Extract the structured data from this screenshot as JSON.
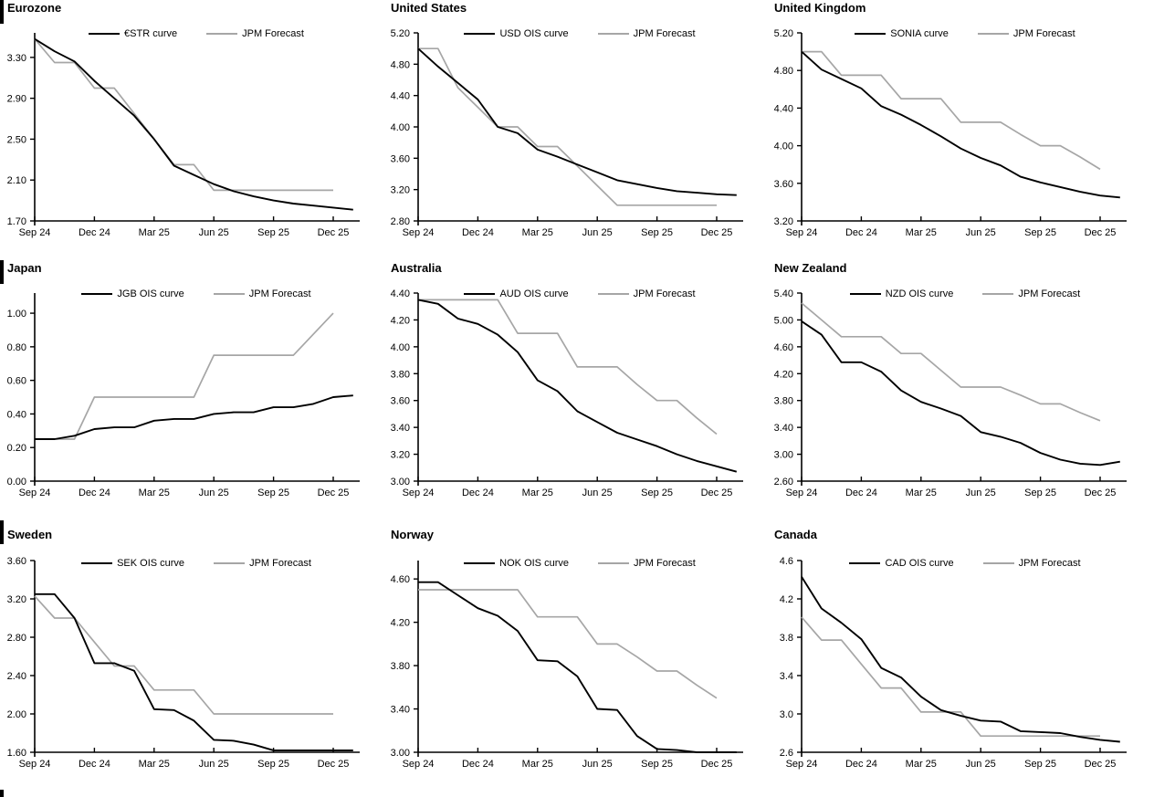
{
  "page": {
    "background": "#ffffff",
    "curve_black": "#000000",
    "forecast_gray": "#a6a6a6"
  },
  "chart_data": [
    {
      "type": "line",
      "title": "Eurozone",
      "section_bar": true,
      "x_tick_labels": [
        "Sep 24",
        "Dec 24",
        "Mar 25",
        "Jun 25",
        "Sep 25",
        "Dec 25"
      ],
      "x_tick_months": [
        0,
        3,
        6,
        9,
        12,
        15
      ],
      "ylim": [
        1.7,
        3.54
      ],
      "y_ticks": [
        1.7,
        2.1,
        2.5,
        2.9,
        3.3
      ],
      "y_decimals": 2,
      "grid": "off",
      "legend_position": "top-center",
      "series": [
        {
          "name": "€STR curve",
          "color": "#000000",
          "width": 1.9,
          "values": [
            3.48,
            3.36,
            3.26,
            3.07,
            2.9,
            2.73,
            2.5,
            2.24,
            2.15,
            2.06,
            1.99,
            1.94,
            1.9,
            1.87,
            1.85,
            1.83,
            1.81
          ]
        },
        {
          "name": "JPM Forecast",
          "color": "#a6a6a6",
          "width": 1.7,
          "values": [
            3.48,
            3.25,
            3.25,
            3.0,
            3.0,
            2.75,
            2.5,
            2.25,
            2.25,
            2.0,
            2.0,
            2.0,
            2.0,
            2.0,
            2.0,
            2.0
          ]
        }
      ]
    },
    {
      "type": "line",
      "title": "United States",
      "section_bar": false,
      "x_tick_labels": [
        "Sep 24",
        "Dec 24",
        "Mar 25",
        "Jun 25",
        "Sep 25",
        "Dec 25"
      ],
      "x_tick_months": [
        0,
        3,
        6,
        9,
        12,
        15
      ],
      "ylim": [
        2.8,
        5.2
      ],
      "y_ticks": [
        2.8,
        3.2,
        3.6,
        4.0,
        4.4,
        4.8,
        5.2
      ],
      "y_decimals": 2,
      "grid": "off",
      "legend_position": "top-center",
      "series": [
        {
          "name": "USD OIS curve",
          "color": "#000000",
          "width": 1.9,
          "values": [
            5.0,
            4.77,
            4.56,
            4.35,
            4.0,
            3.92,
            3.71,
            3.62,
            3.52,
            3.42,
            3.32,
            3.27,
            3.22,
            3.18,
            3.16,
            3.14,
            3.13
          ]
        },
        {
          "name": "JPM Forecast",
          "color": "#a6a6a6",
          "width": 1.7,
          "values": [
            5.0,
            5.0,
            4.5,
            4.25,
            4.0,
            4.0,
            3.75,
            3.75,
            3.5,
            3.25,
            3.0,
            3.0,
            3.0,
            3.0,
            3.0,
            3.0
          ]
        }
      ]
    },
    {
      "type": "line",
      "title": "United Kingdom",
      "section_bar": false,
      "x_tick_labels": [
        "Sep 24",
        "Dec 24",
        "Mar 25",
        "Jun 25",
        "Sep 25",
        "Dec 25"
      ],
      "x_tick_months": [
        0,
        3,
        6,
        9,
        12,
        15
      ],
      "ylim": [
        3.2,
        5.2
      ],
      "y_ticks": [
        3.2,
        3.6,
        4.0,
        4.4,
        4.8,
        5.2
      ],
      "y_decimals": 2,
      "grid": "off",
      "legend_position": "top-center",
      "series": [
        {
          "name": "SONIA curve",
          "color": "#000000",
          "width": 1.9,
          "values": [
            5.0,
            4.81,
            4.71,
            4.61,
            4.42,
            4.33,
            4.22,
            4.1,
            3.97,
            3.87,
            3.79,
            3.67,
            3.61,
            3.56,
            3.51,
            3.47,
            3.45
          ]
        },
        {
          "name": "JPM Forecast",
          "color": "#a6a6a6",
          "width": 1.7,
          "values": [
            5.0,
            5.0,
            4.75,
            4.75,
            4.75,
            4.5,
            4.5,
            4.5,
            4.25,
            4.25,
            4.25,
            4.12,
            4.0,
            4.0,
            3.88,
            3.75
          ]
        }
      ]
    },
    {
      "type": "line",
      "title": "Japan",
      "section_bar": true,
      "x_tick_labels": [
        "Sep 24",
        "Dec 24",
        "Mar 25",
        "Jun 25",
        "Sep 25",
        "Dec 25"
      ],
      "x_tick_months": [
        0,
        3,
        6,
        9,
        12,
        15
      ],
      "ylim": [
        0.0,
        1.12
      ],
      "y_ticks": [
        0.0,
        0.2,
        0.4,
        0.6,
        0.8,
        1.0
      ],
      "y_decimals": 2,
      "grid": "off",
      "legend_position": "top-center",
      "series": [
        {
          "name": "JGB OIS curve",
          "color": "#000000",
          "width": 1.9,
          "values": [
            0.25,
            0.25,
            0.27,
            0.31,
            0.32,
            0.32,
            0.36,
            0.37,
            0.37,
            0.4,
            0.41,
            0.41,
            0.44,
            0.44,
            0.46,
            0.5,
            0.51
          ]
        },
        {
          "name": "JPM Forecast",
          "color": "#a6a6a6",
          "width": 1.7,
          "values": [
            0.25,
            0.25,
            0.25,
            0.5,
            0.5,
            0.5,
            0.5,
            0.5,
            0.5,
            0.75,
            0.75,
            0.75,
            0.75,
            0.75,
            0.875,
            1.0
          ]
        }
      ]
    },
    {
      "type": "line",
      "title": "Australia",
      "section_bar": false,
      "x_tick_labels": [
        "Sep 24",
        "Dec 24",
        "Mar 25",
        "Jun 25",
        "Sep 25",
        "Dec 25"
      ],
      "x_tick_months": [
        0,
        3,
        6,
        9,
        12,
        15
      ],
      "ylim": [
        3.0,
        4.4
      ],
      "y_ticks": [
        3.0,
        3.2,
        3.4,
        3.6,
        3.8,
        4.0,
        4.2,
        4.4
      ],
      "y_decimals": 2,
      "grid": "off",
      "legend_position": "top-center",
      "series": [
        {
          "name": "AUD OIS curve",
          "color": "#000000",
          "width": 1.9,
          "values": [
            4.35,
            4.32,
            4.21,
            4.17,
            4.09,
            3.96,
            3.75,
            3.67,
            3.52,
            3.44,
            3.36,
            3.31,
            3.26,
            3.2,
            3.15,
            3.11,
            3.07
          ]
        },
        {
          "name": "JPM Forecast",
          "color": "#a6a6a6",
          "width": 1.7,
          "values": [
            4.35,
            4.35,
            4.35,
            4.35,
            4.35,
            4.1,
            4.1,
            4.1,
            3.85,
            3.85,
            3.85,
            3.72,
            3.6,
            3.6,
            3.47,
            3.35
          ]
        }
      ]
    },
    {
      "type": "line",
      "title": "New Zealand",
      "section_bar": false,
      "x_tick_labels": [
        "Sep 24",
        "Dec 24",
        "Mar 25",
        "Jun 25",
        "Sep 25",
        "Dec 25"
      ],
      "x_tick_months": [
        0,
        3,
        6,
        9,
        12,
        15
      ],
      "ylim": [
        2.6,
        5.4
      ],
      "y_ticks": [
        2.6,
        3.0,
        3.4,
        3.8,
        4.2,
        4.6,
        5.0,
        5.4
      ],
      "y_decimals": 2,
      "grid": "off",
      "legend_position": "top-center",
      "series": [
        {
          "name": "NZD OIS curve",
          "color": "#000000",
          "width": 1.9,
          "values": [
            4.98,
            4.78,
            4.37,
            4.37,
            4.23,
            3.95,
            3.78,
            3.68,
            3.57,
            3.33,
            3.26,
            3.17,
            3.02,
            2.92,
            2.86,
            2.84,
            2.89
          ]
        },
        {
          "name": "JPM Forecast",
          "color": "#a6a6a6",
          "width": 1.7,
          "values": [
            5.25,
            5.0,
            4.75,
            4.75,
            4.75,
            4.5,
            4.5,
            4.25,
            4.0,
            4.0,
            4.0,
            3.88,
            3.75,
            3.75,
            3.62,
            3.5
          ]
        }
      ]
    },
    {
      "type": "line",
      "title": "Sweden",
      "section_bar": true,
      "x_tick_labels": [
        "Sep 24",
        "Dec 24",
        "Mar 25",
        "Jun 25",
        "Sep 25",
        "Dec 25"
      ],
      "x_tick_months": [
        0,
        3,
        6,
        9,
        12,
        15
      ],
      "ylim": [
        1.6,
        3.6
      ],
      "y_ticks": [
        1.6,
        2.0,
        2.4,
        2.8,
        3.2,
        3.6
      ],
      "y_decimals": 2,
      "grid": "off",
      "legend_position": "top-center",
      "series": [
        {
          "name": "SEK OIS curve",
          "color": "#000000",
          "width": 1.9,
          "values": [
            3.25,
            3.25,
            3.0,
            2.53,
            2.53,
            2.45,
            2.05,
            2.04,
            1.93,
            1.73,
            1.72,
            1.68,
            1.62,
            1.62,
            1.62,
            1.62,
            1.62
          ]
        },
        {
          "name": "JPM Forecast",
          "color": "#a6a6a6",
          "width": 1.7,
          "values": [
            3.23,
            3.0,
            3.0,
            2.75,
            2.5,
            2.5,
            2.25,
            2.25,
            2.25,
            2.0,
            2.0,
            2.0,
            2.0,
            2.0,
            2.0,
            2.0
          ]
        }
      ]
    },
    {
      "type": "line",
      "title": "Norway",
      "section_bar": false,
      "x_tick_labels": [
        "Sep 24",
        "Dec 24",
        "Mar 25",
        "Jun 25",
        "Sep 25",
        "Dec 25"
      ],
      "x_tick_months": [
        0,
        3,
        6,
        9,
        12,
        15
      ],
      "ylim": [
        3.0,
        4.77
      ],
      "y_ticks": [
        3.0,
        3.4,
        3.8,
        4.2,
        4.6
      ],
      "y_decimals": 2,
      "grid": "off",
      "legend_position": "top-center",
      "series": [
        {
          "name": "NOK OIS curve",
          "color": "#000000",
          "width": 1.9,
          "values": [
            4.57,
            4.57,
            4.45,
            4.33,
            4.26,
            4.12,
            3.85,
            3.84,
            3.7,
            3.4,
            3.39,
            3.15,
            3.03,
            3.02,
            3.0,
            3.0,
            3.0
          ]
        },
        {
          "name": "JPM Forecast",
          "color": "#a6a6a6",
          "width": 1.7,
          "values": [
            4.5,
            4.5,
            4.5,
            4.5,
            4.5,
            4.5,
            4.25,
            4.25,
            4.25,
            4.0,
            4.0,
            3.88,
            3.75,
            3.75,
            3.62,
            3.5
          ]
        }
      ]
    },
    {
      "type": "line",
      "title": "Canada",
      "section_bar": false,
      "x_tick_labels": [
        "Sep 24",
        "Dec 24",
        "Mar 25",
        "Jun 25",
        "Sep 25",
        "Dec 25"
      ],
      "x_tick_months": [
        0,
        3,
        6,
        9,
        12,
        15
      ],
      "ylim": [
        2.6,
        4.6
      ],
      "y_ticks": [
        2.6,
        3.0,
        3.4,
        3.8,
        4.2,
        4.6
      ],
      "y_decimals": 1,
      "grid": "off",
      "legend_position": "top-center",
      "series": [
        {
          "name": "CAD OIS curve",
          "color": "#000000",
          "width": 1.9,
          "values": [
            4.43,
            4.1,
            3.95,
            3.78,
            3.48,
            3.38,
            3.18,
            3.04,
            2.98,
            2.93,
            2.92,
            2.82,
            2.81,
            2.8,
            2.76,
            2.73,
            2.71
          ]
        },
        {
          "name": "JPM Forecast",
          "color": "#a6a6a6",
          "width": 1.7,
          "values": [
            4.01,
            3.77,
            3.77,
            3.52,
            3.27,
            3.27,
            3.02,
            3.02,
            3.02,
            2.77,
            2.77,
            2.77,
            2.77,
            2.77,
            2.77,
            2.77
          ]
        }
      ]
    }
  ]
}
